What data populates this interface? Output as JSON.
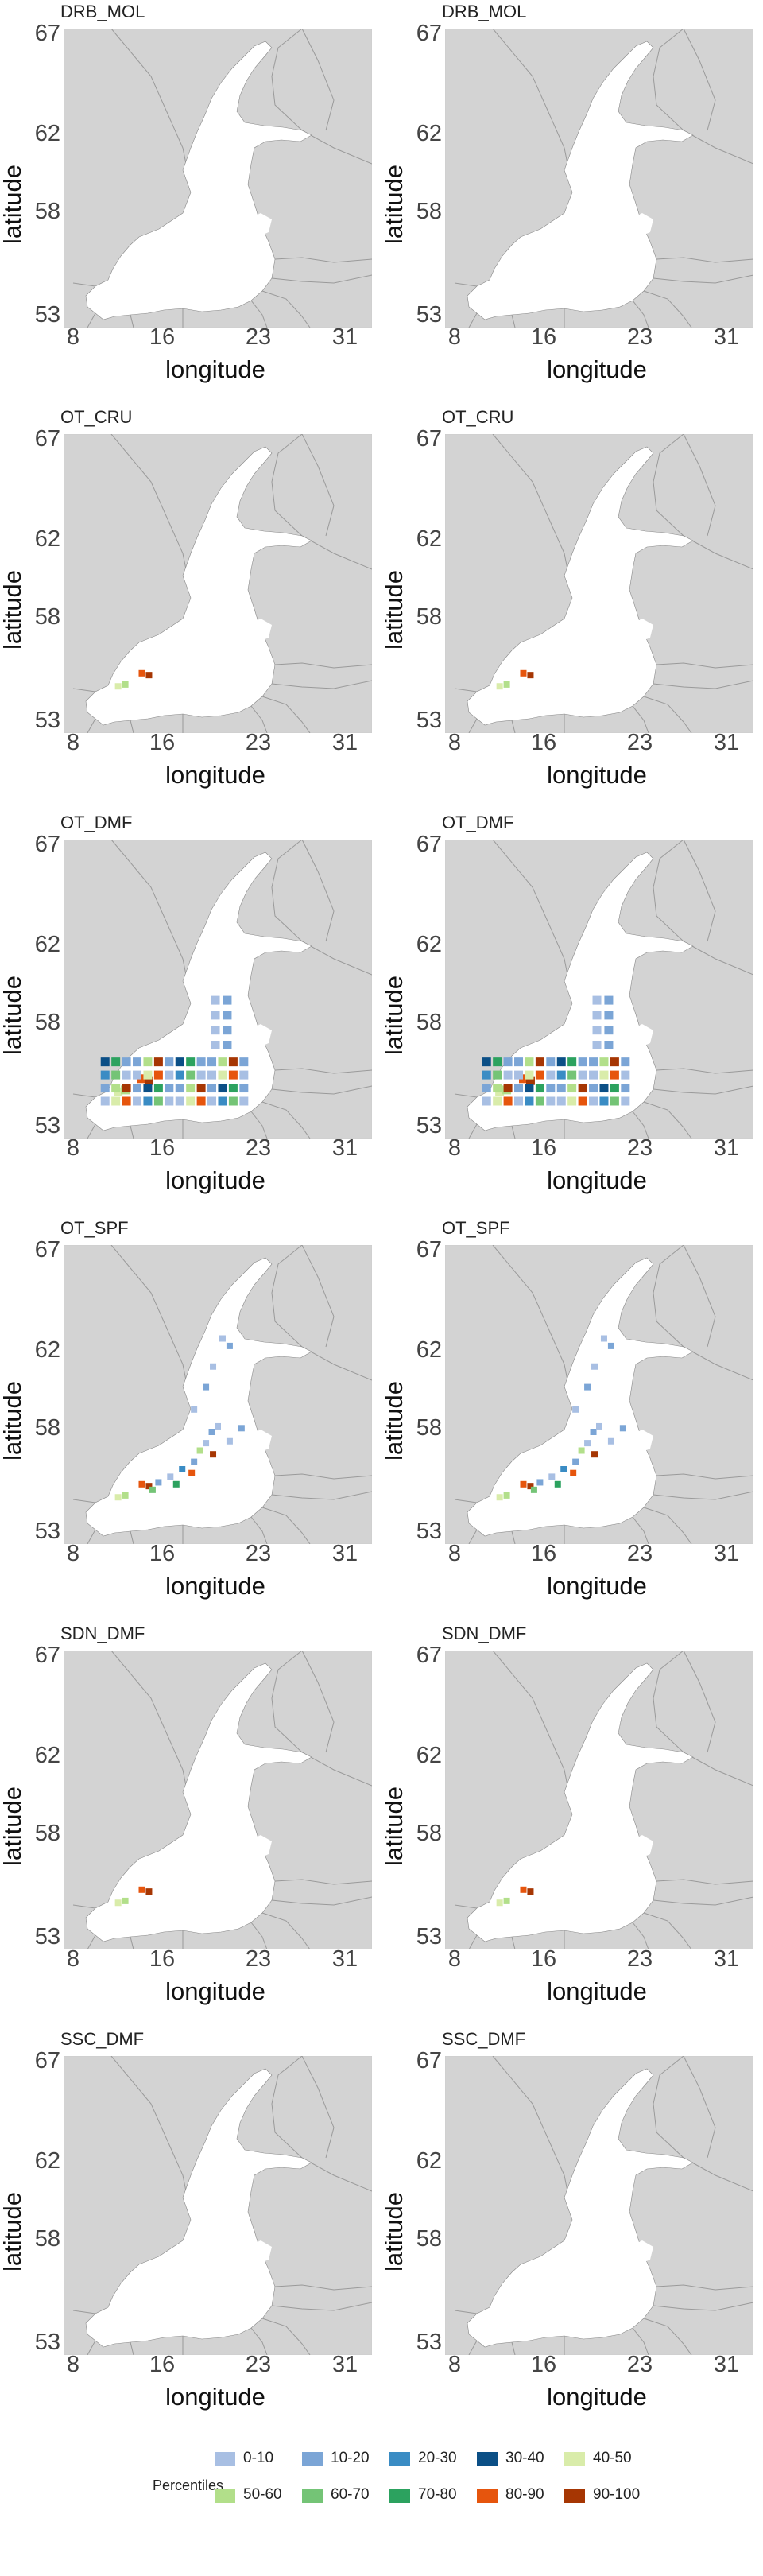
{
  "axes": {
    "xlabel": "longitude",
    "ylabel": "latitude",
    "xticks": [
      "8",
      "16",
      "23",
      "31"
    ],
    "yticks": [
      "67",
      "62",
      "58",
      "53"
    ],
    "xlim": [
      6,
      32
    ],
    "ylim": [
      52,
      68
    ]
  },
  "colors": {
    "land": "#d3d3d3",
    "sea": "#ffffff",
    "border": "#9a9a9a",
    "panel_border": "#cccccc"
  },
  "panels": [
    {
      "title": "DRB_MOL",
      "level": 0
    },
    {
      "title": "DRB_MOL",
      "level": 0
    },
    {
      "title": "OT_CRU",
      "level": 1
    },
    {
      "title": "OT_CRU",
      "level": 1
    },
    {
      "title": "OT_DMF",
      "level": 3
    },
    {
      "title": "OT_DMF",
      "level": 3
    },
    {
      "title": "OT_SPF",
      "level": 2
    },
    {
      "title": "OT_SPF",
      "level": 2
    },
    {
      "title": "SDN_DMF",
      "level": 1
    },
    {
      "title": "SDN_DMF",
      "level": 1
    },
    {
      "title": "SSC_DMF",
      "level": 0
    },
    {
      "title": "SSC_DMF",
      "level": 0
    }
  ],
  "legend": {
    "title": "Percentiles",
    "items": [
      {
        "label": "0-10",
        "color": "#a8bfe3"
      },
      {
        "label": "10-20",
        "color": "#7ba5d6"
      },
      {
        "label": "20-30",
        "color": "#3a8cc4"
      },
      {
        "label": "30-40",
        "color": "#0b4f86"
      },
      {
        "label": "40-50",
        "color": "#d9ecaa"
      },
      {
        "label": "50-60",
        "color": "#b2df8a"
      },
      {
        "label": "60-70",
        "color": "#74c476"
      },
      {
        "label": "70-80",
        "color": "#2ca25f"
      },
      {
        "label": "80-90",
        "color": "#e6550d"
      },
      {
        "label": "90-100",
        "color": "#a63603"
      }
    ]
  }
}
